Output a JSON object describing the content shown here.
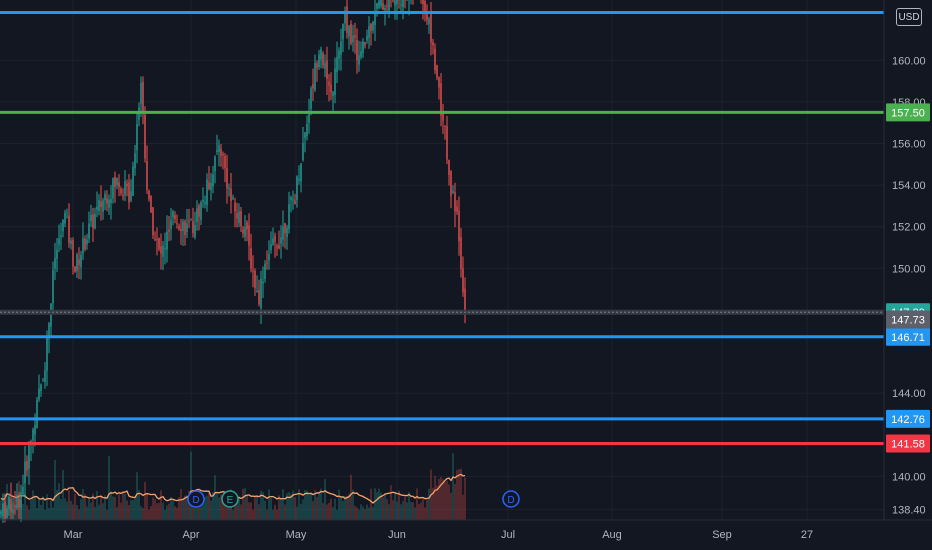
{
  "currency": "USD",
  "chart_data": {
    "type": "candlestick",
    "y_axis": {
      "ticks": [
        160.0,
        158.0,
        156.0,
        154.0,
        152.0,
        150.0,
        144.0,
        140.0,
        138.4
      ],
      "range": [
        137.9,
        162.9
      ]
    },
    "x_axis": {
      "ticks": [
        "Mar",
        "Apr",
        "May",
        "Jun",
        "Jul",
        "Aug",
        "Sep",
        "27"
      ]
    },
    "price_lines": [
      {
        "price": 157.5,
        "label": "157.50",
        "color": "#4caf50"
      },
      {
        "price": 146.71,
        "label": "146.71",
        "color": "#2196f3"
      },
      {
        "price": 142.76,
        "label": "142.76",
        "color": "#2196f3"
      },
      {
        "price": 141.58,
        "label": "141.58",
        "color": "#f23645"
      },
      {
        "price": 162.3,
        "label": "",
        "color": "#2196f3"
      }
    ],
    "current_price": {
      "price": 147.89,
      "label": "147.89",
      "color": "#26a69a"
    },
    "prev_close": {
      "price": 147.73,
      "label": "147.73",
      "color": "#5d606b"
    },
    "event_markers": [
      {
        "label": "D",
        "color": "#2962ff"
      },
      {
        "label": "E",
        "color": "#26a69a"
      },
      {
        "label": "D",
        "color": "#2962ff"
      }
    ],
    "colors": {
      "up": "#26a69a",
      "down": "#ef5350",
      "ma": "#f6a26a"
    }
  }
}
